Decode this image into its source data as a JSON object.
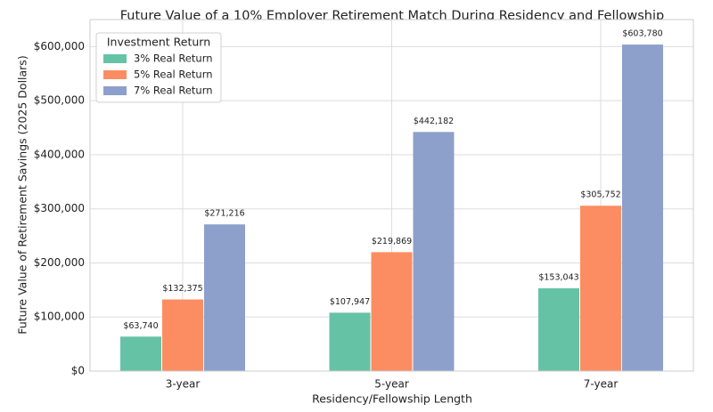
{
  "chart_data": {
    "type": "bar",
    "title": "Future Value of a 10% Employer Retirement Match During Residency and Fellowship",
    "x_label": "Residency/Fellowship Length",
    "y_label": "Future Value of Retirement Savings (2025 Dollars)",
    "categories": [
      "3-year",
      "5-year",
      "7-year"
    ],
    "legend_title": "Investment Return",
    "legend_position": "upper left",
    "grid": true,
    "series": [
      {
        "name": "3% Real Return",
        "color": "#66c2a5",
        "values": [
          63740,
          107947,
          153043
        ],
        "value_labels": [
          "$63,740",
          "$107,947",
          "$153,043"
        ]
      },
      {
        "name": "5% Real Return",
        "color": "#fc8d62",
        "values": [
          132375,
          219869,
          305752
        ],
        "value_labels": [
          "$132,375",
          "$219,869",
          "$305,752"
        ]
      },
      {
        "name": "7% Real Return",
        "color": "#8da0cb",
        "values": [
          271216,
          442182,
          603780
        ],
        "value_labels": [
          "$271,216",
          "$442,182",
          "$603,780"
        ]
      }
    ],
    "ylim": [
      0,
      650000
    ],
    "yticks": [
      {
        "value": 0,
        "label": "$0"
      },
      {
        "value": 100000,
        "label": "$100,000"
      },
      {
        "value": 200000,
        "label": "$200,000"
      },
      {
        "value": 300000,
        "label": "$300,000"
      },
      {
        "value": 400000,
        "label": "$400,000"
      },
      {
        "value": 500000,
        "label": "$500,000"
      },
      {
        "value": 600000,
        "label": "$600,000"
      }
    ]
  }
}
